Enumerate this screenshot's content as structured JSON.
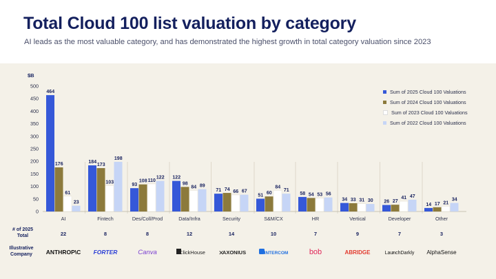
{
  "header": {
    "title": "Total Cloud 100 list valuation by category",
    "subtitle": "AI leads as the most valuable category, and has demonstrated the highest growth in total category valuation since 2023"
  },
  "chart_data": {
    "type": "bar",
    "ylabel": "$B",
    "ylim": [
      0,
      500
    ],
    "yticks": [
      0,
      50,
      100,
      150,
      200,
      250,
      300,
      350,
      400,
      450,
      500
    ],
    "grid": false,
    "legend_position": "right",
    "categories": [
      "AI",
      "Fintech",
      "Des/Coll/Prod",
      "Data/Infra",
      "Security",
      "S&M/CX",
      "HR",
      "Vertical",
      "Developer",
      "Other"
    ],
    "series": [
      {
        "name": "Sum of 2025 Cloud 100 Valuations",
        "color": "#3558d8",
        "values": [
          464,
          184,
          93,
          122,
          71,
          51,
          58,
          34,
          26,
          14
        ]
      },
      {
        "name": "Sum of 2024 Cloud 100 Valuations",
        "color": "#8c7a3c",
        "values": [
          176,
          173,
          108,
          98,
          74,
          60,
          54,
          33,
          27,
          17
        ]
      },
      {
        "name": "Sum of 2023 Cloud 100 Valuations",
        "color": "#ffffff",
        "values": [
          61,
          103,
          110,
          84,
          66,
          84,
          53,
          31,
          41,
          21
        ]
      },
      {
        "name": "Sum of 2022 Cloud 100 Valuations",
        "color": "#c6d5f6",
        "values": [
          23,
          198,
          122,
          89,
          67,
          71,
          56,
          30,
          47,
          34
        ]
      }
    ],
    "totals_label": "# of 2025\nTotal",
    "totals": [
      22,
      8,
      8,
      12,
      14,
      10,
      7,
      9,
      7,
      3
    ],
    "company_label": "Illustrative\nCompany",
    "companies": [
      "ANTHROP\\C",
      "FORTER",
      "Canva",
      "ClickHouse",
      "AXONIUS",
      "INTERCOM",
      "bob",
      "ABRIDGE",
      "LaunchDarkly",
      "AlphaSense"
    ]
  }
}
